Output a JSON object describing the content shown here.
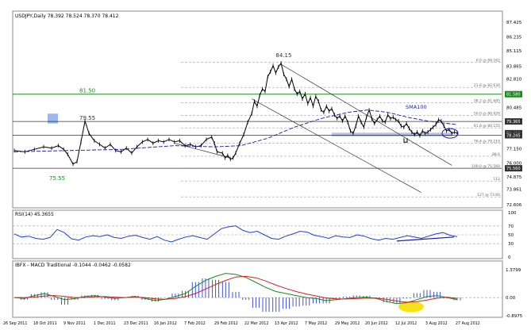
{
  "panels": {
    "main_title": "USDJPY,Daily  78.392 78.524 78.370 78.412",
    "rsi_title": "RSI(14) 45.3655",
    "macd_title": "IBFX - MACD Traditional -0.1044 -0.0462 -0.0582"
  },
  "colors": {
    "price": "#000000",
    "sma": "#1a1aaa",
    "rsi": "#1f3fd6",
    "macd_line": "#1a8a1a",
    "signal_line": "#d22020",
    "histogram": "#2a3fd8",
    "green_level": "#1a8a1a",
    "blue_zone": "#9cb7ee",
    "highlight": "#f5e21a",
    "grid": "#a0a0a0"
  },
  "chart_data": [
    {
      "type": "line",
      "subtype": "candlestick",
      "symbol": "USDJPY",
      "timeframe": "Daily",
      "ohlc_last": {
        "open": 78.392,
        "high": 78.524,
        "low": 78.37,
        "close": 78.412
      },
      "y_ticks": [
        "87.425",
        "86.235",
        "85.115",
        "83.865",
        "82.810",
        "81.580",
        "80.485",
        "79.365",
        "78.245",
        "77.150",
        "76.000",
        "74.875",
        "73.861",
        "72.606"
      ],
      "x_ticks": [
        "26 Sep 2011",
        "18 Oct 2011",
        "9 Nov 2011",
        "1 Dec 2011",
        "23 Dec 2011",
        "16 Jan 2012",
        "7 Feb 2012",
        "29 Feb 2012",
        "22 Mar 2012",
        "13 Apr 2012",
        "7 May 2012",
        "29 May 2012",
        "20 Jun 2012",
        "12 Jul 2012",
        "3 Aug 2012",
        "27 Aug 2012"
      ],
      "price_path": [
        [
          0,
          77.0
        ],
        [
          8,
          76.9
        ],
        [
          15,
          77.1
        ],
        [
          22,
          77.3
        ],
        [
          28,
          77.2
        ],
        [
          33,
          77.4
        ],
        [
          37,
          77.1
        ],
        [
          40,
          76.7
        ],
        [
          44,
          75.9
        ],
        [
          47,
          76.1
        ],
        [
          50,
          77.7
        ],
        [
          53,
          79.4
        ],
        [
          56,
          78.4
        ],
        [
          60,
          77.8
        ],
        [
          64,
          77.5
        ],
        [
          68,
          77.2
        ],
        [
          72,
          77.5
        ],
        [
          76,
          77.0
        ],
        [
          80,
          76.9
        ],
        [
          84,
          77.2
        ],
        [
          88,
          76.8
        ],
        [
          92,
          77.3
        ],
        [
          96,
          77.7
        ],
        [
          100,
          77.9
        ],
        [
          104,
          77.6
        ],
        [
          108,
          77.8
        ],
        [
          112,
          77.7
        ],
        [
          116,
          77.9
        ],
        [
          120,
          77.7
        ],
        [
          124,
          77.8
        ],
        [
          128,
          77.4
        ],
        [
          132,
          77.5
        ],
        [
          136,
          77.3
        ],
        [
          140,
          77.4
        ],
        [
          144,
          77.9
        ],
        [
          148,
          78.1
        ],
        [
          150,
          77.6
        ],
        [
          152,
          76.9
        ],
        [
          156,
          76.8
        ],
        [
          158,
          76.4
        ],
        [
          160,
          76.6
        ],
        [
          162,
          76.3
        ],
        [
          164,
          76.4
        ],
        [
          166,
          76.8
        ],
        [
          169,
          77.6
        ],
        [
          172,
          78.3
        ],
        [
          175,
          79.3
        ],
        [
          178,
          80.0
        ],
        [
          180,
          81.0
        ],
        [
          182,
          80.6
        ],
        [
          184,
          81.5
        ],
        [
          186,
          82.0
        ],
        [
          188,
          81.8
        ],
        [
          190,
          83.0
        ],
        [
          192,
          83.4
        ],
        [
          194,
          83.9
        ],
        [
          196,
          83.3
        ],
        [
          198,
          83.8
        ],
        [
          200,
          84.1
        ],
        [
          202,
          83.2
        ],
        [
          204,
          82.8
        ],
        [
          206,
          82.2
        ],
        [
          208,
          82.8
        ],
        [
          210,
          82.0
        ],
        [
          212,
          81.6
        ],
        [
          214,
          81.8
        ],
        [
          216,
          81.2
        ],
        [
          218,
          81.6
        ],
        [
          220,
          80.8
        ],
        [
          222,
          81.3
        ],
        [
          224,
          80.6
        ],
        [
          226,
          81.4
        ],
        [
          228,
          81.0
        ],
        [
          230,
          80.3
        ],
        [
          232,
          80.1
        ],
        [
          234,
          80.6
        ],
        [
          236,
          80.2
        ],
        [
          238,
          80.4
        ],
        [
          240,
          79.9
        ],
        [
          242,
          79.6
        ],
        [
          244,
          79.8
        ],
        [
          246,
          79.4
        ],
        [
          248,
          79.8
        ],
        [
          250,
          79.3
        ],
        [
          252,
          78.6
        ],
        [
          254,
          78.4
        ],
        [
          256,
          79.0
        ],
        [
          258,
          79.8
        ],
        [
          260,
          79.3
        ],
        [
          262,
          78.9
        ],
        [
          264,
          79.7
        ],
        [
          266,
          80.3
        ],
        [
          268,
          79.6
        ],
        [
          270,
          79.2
        ],
        [
          272,
          79.5
        ],
        [
          274,
          79.8
        ],
        [
          276,
          79.4
        ],
        [
          278,
          79.3
        ],
        [
          280,
          79.9
        ],
        [
          282,
          79.6
        ],
        [
          284,
          79.7
        ],
        [
          286,
          79.5
        ],
        [
          288,
          79.4
        ],
        [
          290,
          79.0
        ],
        [
          292,
          78.9
        ],
        [
          294,
          79.2
        ],
        [
          296,
          78.8
        ],
        [
          298,
          78.5
        ],
        [
          300,
          78.3
        ],
        [
          302,
          78.5
        ],
        [
          304,
          78.2
        ],
        [
          306,
          78.6
        ],
        [
          308,
          78.4
        ],
        [
          310,
          78.5
        ],
        [
          312,
          78.7
        ],
        [
          314,
          78.9
        ],
        [
          316,
          79.1
        ],
        [
          318,
          79.5
        ],
        [
          320,
          79.4
        ],
        [
          322,
          79.0
        ],
        [
          324,
          78.6
        ],
        [
          326,
          78.7
        ],
        [
          328,
          78.4
        ],
        [
          330,
          78.5
        ],
        [
          332,
          78.4
        ]
      ],
      "sma_path": [
        [
          0,
          76.9
        ],
        [
          40,
          77.0
        ],
        [
          80,
          77.1
        ],
        [
          120,
          77.4
        ],
        [
          150,
          77.3
        ],
        [
          170,
          77.4
        ],
        [
          190,
          78.0
        ],
        [
          210,
          78.9
        ],
        [
          230,
          79.6
        ],
        [
          250,
          80.1
        ],
        [
          265,
          80.3
        ],
        [
          280,
          80.1
        ],
        [
          295,
          79.7
        ],
        [
          310,
          79.4
        ],
        [
          332,
          79.1
        ]
      ],
      "annotations": [
        {
          "label": "84.15",
          "kind": "peak"
        },
        {
          "label": "81.50",
          "kind": "level",
          "color": "green"
        },
        {
          "label": "79.55",
          "kind": "level"
        },
        {
          "label": "75.55",
          "kind": "trough",
          "color": "green"
        },
        {
          "label": "SMA100",
          "kind": "series-label",
          "color": "blue"
        }
      ],
      "fib_labels": [
        "0.0 @ 84.162",
        "23.6 @ 82.630",
        "38.2 @ 81.685",
        "50.0 @ 80.920",
        "61.8 @ 80.155",
        "76.4 @ 79.210",
        "88.6",
        "100.0 @ 75.560",
        "112",
        "127 @ 73.60"
      ],
      "highlight_price_labels": [
        "81.580",
        "79.365",
        "78.412",
        "78.245",
        "75.560"
      ]
    },
    {
      "type": "line",
      "name": "RSI(14)",
      "value": 45.3655,
      "y_ticks": [
        "100",
        "70",
        "50",
        "30",
        "0"
      ],
      "levels": [
        70,
        50,
        30
      ],
      "values": [
        52,
        45,
        47,
        42,
        40,
        44,
        62,
        55,
        41,
        38,
        45,
        48,
        46,
        50,
        44,
        42,
        47,
        49,
        44,
        40,
        46,
        38,
        34,
        40,
        45,
        48,
        44,
        40,
        52,
        64,
        68,
        70,
        60,
        55,
        58,
        50,
        42,
        40,
        47,
        52,
        58,
        56,
        49,
        46,
        42,
        48,
        45,
        44,
        50,
        47,
        41,
        38,
        42,
        40,
        44,
        48,
        45,
        42,
        47,
        52,
        55,
        49,
        46
      ]
    },
    {
      "type": "line",
      "name": "IBFX - MACD Traditional",
      "values_current": {
        "macd": -0.1044,
        "signal": -0.0462,
        "hist": -0.0582
      },
      "y_ticks": [
        "1.3799",
        "0.00",
        "-0.8975"
      ],
      "macd": [
        0.0,
        -0.05,
        0.1,
        0.2,
        0.05,
        -0.1,
        -0.05,
        0.05,
        0.1,
        0.02,
        -0.04,
        0.0,
        0.06,
        -0.05,
        -0.15,
        -0.08,
        0.05,
        0.2,
        0.55,
        0.85,
        1.05,
        1.2,
        1.15,
        1.0,
        0.75,
        0.5,
        0.3,
        0.2,
        0.1,
        0.0,
        -0.05,
        -0.15,
        -0.1,
        -0.05,
        0.0,
        0.02,
        -0.05,
        -0.2,
        -0.3,
        -0.25,
        -0.1,
        0.05,
        0.1,
        0.0,
        -0.1
      ],
      "signal": [
        0.0,
        0.0,
        0.02,
        0.08,
        0.1,
        0.06,
        0.0,
        0.0,
        0.04,
        0.05,
        0.02,
        0.0,
        0.02,
        0.0,
        -0.06,
        -0.08,
        -0.04,
        0.05,
        0.2,
        0.42,
        0.65,
        0.85,
        1.02,
        1.05,
        0.98,
        0.82,
        0.62,
        0.45,
        0.3,
        0.18,
        0.08,
        -0.02,
        -0.06,
        -0.07,
        -0.05,
        -0.02,
        -0.03,
        -0.09,
        -0.17,
        -0.23,
        -0.2,
        -0.12,
        -0.03,
        0.02,
        -0.04
      ]
    }
  ]
}
